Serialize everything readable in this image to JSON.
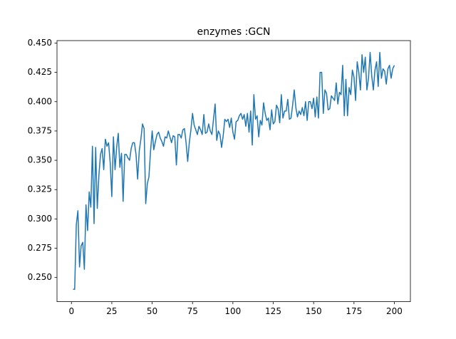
{
  "chart_data": {
    "type": "line",
    "title": "enzymes :GCN",
    "x": [
      1,
      2,
      3,
      4,
      5,
      6,
      7,
      8,
      9,
      10,
      11,
      12,
      13,
      14,
      15,
      16,
      17,
      18,
      19,
      20,
      21,
      22,
      23,
      24,
      25,
      26,
      27,
      28,
      29,
      30,
      31,
      32,
      33,
      34,
      35,
      36,
      37,
      38,
      39,
      40,
      41,
      42,
      43,
      44,
      45,
      46,
      47,
      48,
      49,
      50,
      51,
      52,
      53,
      54,
      55,
      56,
      57,
      58,
      59,
      60,
      61,
      62,
      63,
      64,
      65,
      66,
      67,
      68,
      69,
      70,
      71,
      72,
      73,
      74,
      75,
      76,
      77,
      78,
      79,
      80,
      81,
      82,
      83,
      84,
      85,
      86,
      87,
      88,
      89,
      90,
      91,
      92,
      93,
      94,
      95,
      96,
      97,
      98,
      99,
      100,
      101,
      102,
      103,
      104,
      105,
      106,
      107,
      108,
      109,
      110,
      111,
      112,
      113,
      114,
      115,
      116,
      117,
      118,
      119,
      120,
      121,
      122,
      123,
      124,
      125,
      126,
      127,
      128,
      129,
      130,
      131,
      132,
      133,
      134,
      135,
      136,
      137,
      138,
      139,
      140,
      141,
      142,
      143,
      144,
      145,
      146,
      147,
      148,
      149,
      150,
      151,
      152,
      153,
      154,
      155,
      156,
      157,
      158,
      159,
      160,
      161,
      162,
      163,
      164,
      165,
      166,
      167,
      168,
      169,
      170,
      171,
      172,
      173,
      174,
      175,
      176,
      177,
      178,
      179,
      180,
      181,
      182,
      183,
      184,
      185,
      186,
      187,
      188,
      189,
      190,
      191,
      192,
      193,
      194,
      195,
      196,
      197,
      198,
      199,
      200
    ],
    "series": [
      {
        "color": "#1f77b4",
        "values": [
          0.24,
          0.24,
          0.295,
          0.307,
          0.259,
          0.277,
          0.28,
          0.257,
          0.312,
          0.29,
          0.323,
          0.31,
          0.362,
          0.296,
          0.361,
          0.309,
          0.337,
          0.355,
          0.36,
          0.342,
          0.368,
          0.362,
          0.365,
          0.348,
          0.319,
          0.37,
          0.342,
          0.361,
          0.373,
          0.344,
          0.356,
          0.315,
          0.355,
          0.355,
          0.352,
          0.35,
          0.36,
          0.365,
          0.365,
          0.355,
          0.334,
          0.358,
          0.368,
          0.381,
          0.377,
          0.313,
          0.33,
          0.336,
          0.358,
          0.375,
          0.359,
          0.366,
          0.372,
          0.374,
          0.369,
          0.366,
          0.362,
          0.37,
          0.369,
          0.375,
          0.37,
          0.365,
          0.371,
          0.37,
          0.346,
          0.372,
          0.372,
          0.369,
          0.376,
          0.377,
          0.365,
          0.349,
          0.365,
          0.376,
          0.39,
          0.38,
          0.376,
          0.372,
          0.379,
          0.376,
          0.372,
          0.389,
          0.373,
          0.374,
          0.381,
          0.375,
          0.372,
          0.385,
          0.398,
          0.367,
          0.375,
          0.372,
          0.361,
          0.371,
          0.385,
          0.383,
          0.385,
          0.378,
          0.386,
          0.374,
          0.368,
          0.383,
          0.384,
          0.388,
          0.39,
          0.385,
          0.389,
          0.379,
          0.39,
          0.374,
          0.392,
          0.363,
          0.406,
          0.385,
          0.388,
          0.37,
          0.384,
          0.38,
          0.399,
          0.39,
          0.384,
          0.386,
          0.376,
          0.393,
          0.381,
          0.383,
          0.397,
          0.394,
          0.382,
          0.406,
          0.386,
          0.392,
          0.392,
          0.402,
          0.385,
          0.386,
          0.397,
          0.41,
          0.395,
          0.387,
          0.392,
          0.389,
          0.395,
          0.388,
          0.4,
          0.384,
          0.4,
          0.4,
          0.394,
          0.403,
          0.387,
          0.404,
          0.386,
          0.425,
          0.425,
          0.39,
          0.41,
          0.407,
          0.393,
          0.394,
          0.405,
          0.403,
          0.401,
          0.416,
          0.398,
          0.408,
          0.406,
          0.431,
          0.388,
          0.419,
          0.388,
          0.412,
          0.406,
          0.427,
          0.421,
          0.401,
          0.434,
          0.425,
          0.41,
          0.44,
          0.425,
          0.438,
          0.41,
          0.42,
          0.442,
          0.422,
          0.41,
          0.427,
          0.434,
          0.413,
          0.442,
          0.42,
          0.428,
          0.426,
          0.415,
          0.428,
          0.431,
          0.42,
          0.428,
          0.431
        ]
      }
    ],
    "xlim": [
      -8.95,
      209.95
    ],
    "xticks": [
      0,
      25,
      50,
      75,
      100,
      125,
      150,
      175,
      200
    ],
    "ylim": [
      0.2294,
      0.4521
    ],
    "yticks": [
      {
        "value": 0.25,
        "label": "0.250"
      },
      {
        "value": 0.275,
        "label": "0.275"
      },
      {
        "value": 0.3,
        "label": "0.300"
      },
      {
        "value": 0.325,
        "label": "0.325"
      },
      {
        "value": 0.35,
        "label": "0.350"
      },
      {
        "value": 0.375,
        "label": "0.375"
      },
      {
        "value": 0.4,
        "label": "0.400"
      },
      {
        "value": 0.425,
        "label": "0.425"
      },
      {
        "value": 0.45,
        "label": "0.450"
      }
    ],
    "grid": false
  }
}
